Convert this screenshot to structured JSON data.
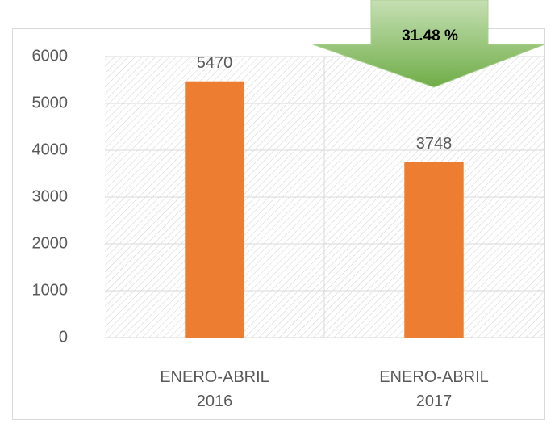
{
  "chart_data": {
    "type": "bar",
    "categories": [
      "ENERO-ABRIL 2016",
      "ENERO-ABRIL 2017"
    ],
    "values": [
      5470,
      3748
    ],
    "color": "#ed7d31",
    "ylim": [
      0,
      6000
    ],
    "yticks": [
      0,
      1000,
      2000,
      3000,
      4000,
      5000,
      6000
    ],
    "grid": true,
    "annotation": "31.48 %"
  }
}
